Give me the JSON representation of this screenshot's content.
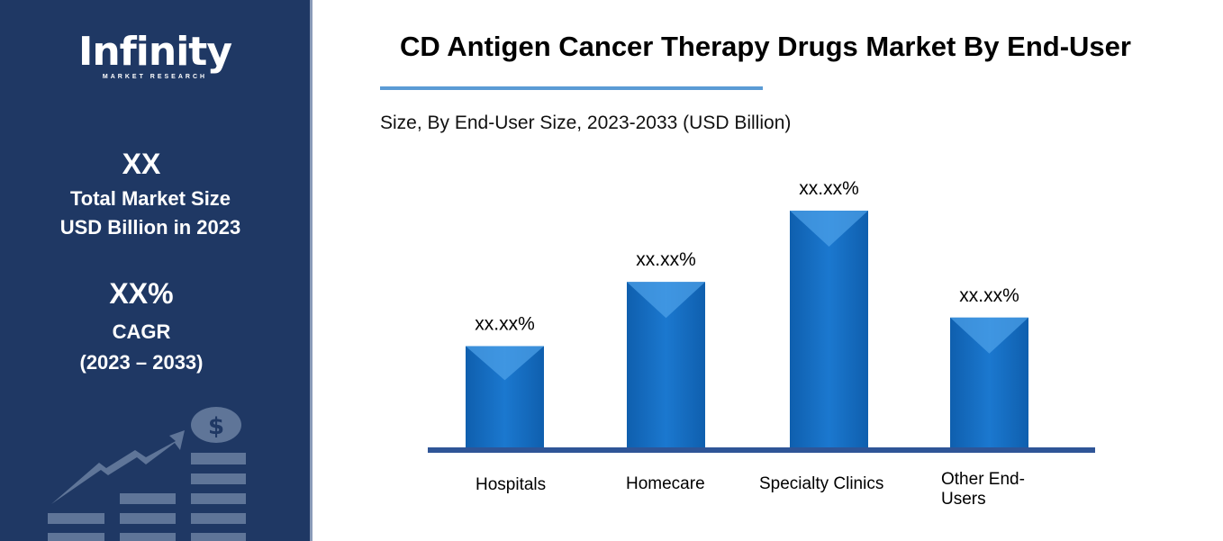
{
  "sidebar": {
    "logo_text": "Infinity",
    "logo_subtext": "MARKET RESEARCH",
    "market_size_value": "XX",
    "market_size_label_1": "Total Market Size",
    "market_size_label_2": "USD Billion in 2023",
    "cagr_value": "XX%",
    "cagr_label": "CAGR",
    "cagr_period": "(2023 – 2033)",
    "decoration_icon": "growth-chart-dollar-icon"
  },
  "colors": {
    "sidebar_bg": "#1f3864",
    "bar": "#1a73c8",
    "axis": "#2f5597",
    "accent": "#5b9bd5"
  },
  "chart_data": {
    "type": "bar",
    "title": "CD Antigen Cancer Therapy Drugs Market By End-User",
    "subtitle": "Size, By End-User Size, 2023-2033 (USD Billion)",
    "categories": [
      "Hospitals",
      "Homecare",
      "Specialty Clinics",
      "Other End-Users"
    ],
    "values": [
      43,
      70,
      100,
      55
    ],
    "data_labels": [
      "xx.xx%",
      "xx.xx%",
      "xx.xx%",
      "xx.xx%"
    ],
    "xlabel": "",
    "ylabel": "",
    "grid": false,
    "legend": "none"
  }
}
